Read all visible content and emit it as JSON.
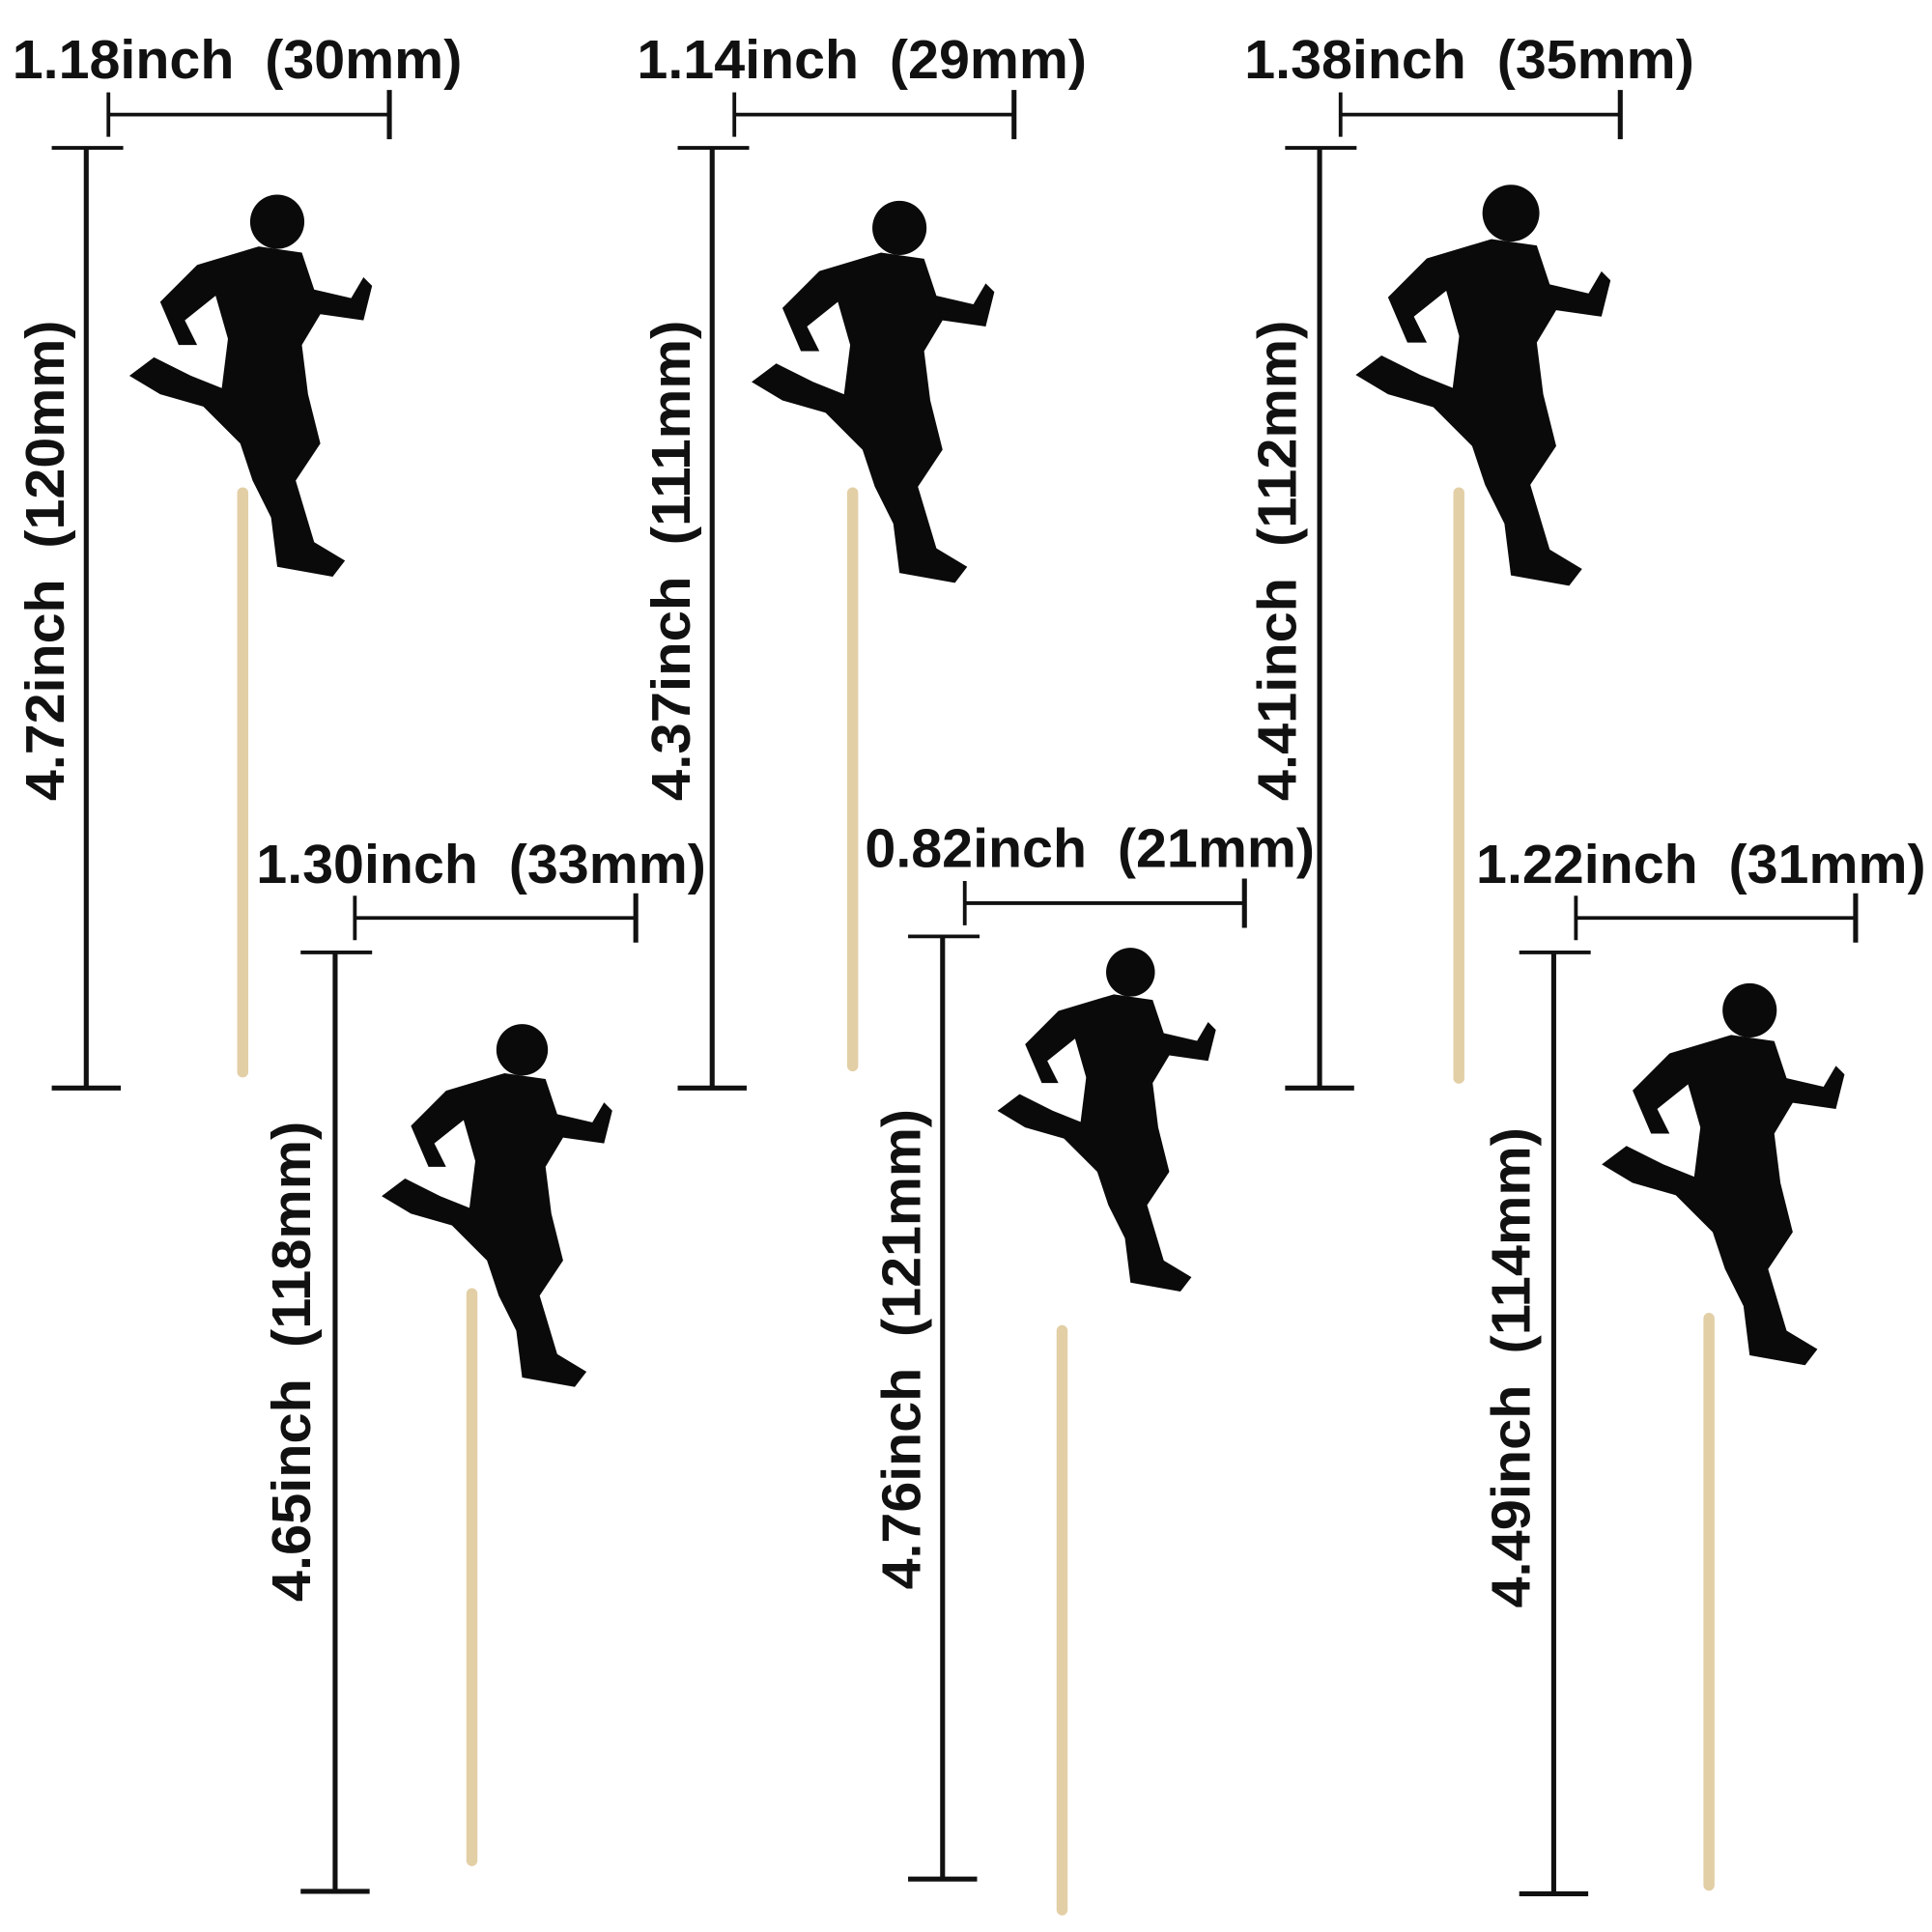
{
  "toppers": [
    {
      "width_label": "1.18inch  (30mm)",
      "height_label": "4.72inch  (120mm)"
    },
    {
      "width_label": "1.14inch  (29mm)",
      "height_label": "4.37inch  (111mm)"
    },
    {
      "width_label": "1.38inch  (35mm)",
      "height_label": "4.41inch  (112mm)"
    },
    {
      "width_label": "1.30inch  (33mm)",
      "height_label": "4.65inch  (118mm)"
    },
    {
      "width_label": "0.82inch  (21mm)",
      "height_label": "4.76inch  (121mm)"
    },
    {
      "width_label": "1.22inch  (31mm)",
      "height_label": "4.49inch  (114mm)"
    }
  ]
}
